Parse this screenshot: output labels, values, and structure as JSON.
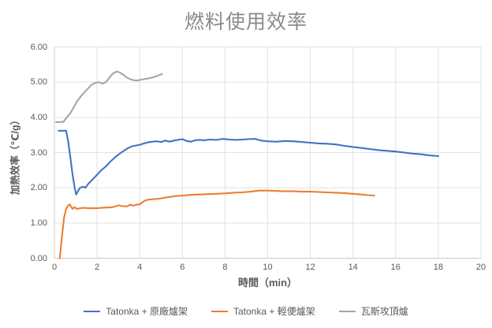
{
  "chart": {
    "title": "燃料使用效率",
    "colors": {
      "grid": "#e2e2e2",
      "axis": "#c9c9c9",
      "tick_text": "#595959",
      "title_text": "#8a8a8a",
      "series_blue": "#4472C4",
      "series_orange": "#ED7D31",
      "series_gray": "#A5A5A5"
    }
  },
  "chart_data": {
    "type": "line",
    "title": "燃料使用效率",
    "xlabel": "時間（min）",
    "ylabel": "加熱效率（℃/g）",
    "xlim": [
      0,
      20
    ],
    "ylim": [
      0,
      6
    ],
    "x_ticks": [
      "0",
      "2",
      "4",
      "6",
      "8",
      "10",
      "12",
      "14",
      "16",
      "18",
      "20"
    ],
    "y_ticks": [
      "0.00",
      "1.00",
      "2.00",
      "3.00",
      "4.00",
      "5.00",
      "6.00"
    ],
    "grid": true,
    "legend_position": "bottom",
    "series": [
      {
        "name": "Tatonka + 原廠爐架",
        "color": "#4472C4",
        "points": [
          [
            0.2,
            3.62
          ],
          [
            0.55,
            3.62
          ],
          [
            0.65,
            3.3
          ],
          [
            0.75,
            2.85
          ],
          [
            0.85,
            2.38
          ],
          [
            0.95,
            2.0
          ],
          [
            1.02,
            1.81
          ],
          [
            1.1,
            1.9
          ],
          [
            1.2,
            2.0
          ],
          [
            1.35,
            2.03
          ],
          [
            1.45,
            2.0
          ],
          [
            1.6,
            2.12
          ],
          [
            1.8,
            2.24
          ],
          [
            2.0,
            2.37
          ],
          [
            2.2,
            2.5
          ],
          [
            2.4,
            2.6
          ],
          [
            2.6,
            2.73
          ],
          [
            2.8,
            2.84
          ],
          [
            3.0,
            2.94
          ],
          [
            3.2,
            3.03
          ],
          [
            3.4,
            3.11
          ],
          [
            3.6,
            3.17
          ],
          [
            3.8,
            3.2
          ],
          [
            4.0,
            3.22
          ],
          [
            4.2,
            3.26
          ],
          [
            4.4,
            3.29
          ],
          [
            4.6,
            3.31
          ],
          [
            4.8,
            3.32
          ],
          [
            5.0,
            3.3
          ],
          [
            5.2,
            3.34
          ],
          [
            5.4,
            3.31
          ],
          [
            5.6,
            3.34
          ],
          [
            5.8,
            3.36
          ],
          [
            6.0,
            3.38
          ],
          [
            6.2,
            3.33
          ],
          [
            6.4,
            3.31
          ],
          [
            6.6,
            3.35
          ],
          [
            6.8,
            3.36
          ],
          [
            7.0,
            3.35
          ],
          [
            7.3,
            3.37
          ],
          [
            7.6,
            3.36
          ],
          [
            7.9,
            3.39
          ],
          [
            8.2,
            3.37
          ],
          [
            8.5,
            3.36
          ],
          [
            8.8,
            3.37
          ],
          [
            9.1,
            3.38
          ],
          [
            9.4,
            3.39
          ],
          [
            9.7,
            3.34
          ],
          [
            10.0,
            3.32
          ],
          [
            10.4,
            3.31
          ],
          [
            10.8,
            3.33
          ],
          [
            11.2,
            3.32
          ],
          [
            11.6,
            3.3
          ],
          [
            12.0,
            3.28
          ],
          [
            12.4,
            3.26
          ],
          [
            12.8,
            3.25
          ],
          [
            13.2,
            3.23
          ],
          [
            13.6,
            3.19
          ],
          [
            14.0,
            3.16
          ],
          [
            14.4,
            3.13
          ],
          [
            14.8,
            3.1
          ],
          [
            15.2,
            3.07
          ],
          [
            15.6,
            3.05
          ],
          [
            16.0,
            3.03
          ],
          [
            16.4,
            3.0
          ],
          [
            16.8,
            2.97
          ],
          [
            17.2,
            2.95
          ],
          [
            17.6,
            2.92
          ],
          [
            18.0,
            2.9
          ]
        ]
      },
      {
        "name": "Tatonka + 輕便爐架",
        "color": "#ED7D31",
        "points": [
          [
            0.25,
            0.0
          ],
          [
            0.35,
            0.6
          ],
          [
            0.45,
            1.15
          ],
          [
            0.55,
            1.4
          ],
          [
            0.65,
            1.5
          ],
          [
            0.72,
            1.53
          ],
          [
            0.85,
            1.4
          ],
          [
            0.95,
            1.45
          ],
          [
            1.05,
            1.4
          ],
          [
            1.2,
            1.42
          ],
          [
            1.4,
            1.43
          ],
          [
            1.6,
            1.42
          ],
          [
            1.8,
            1.42
          ],
          [
            2.0,
            1.42
          ],
          [
            2.2,
            1.43
          ],
          [
            2.4,
            1.44
          ],
          [
            2.6,
            1.44
          ],
          [
            2.8,
            1.46
          ],
          [
            3.0,
            1.5
          ],
          [
            3.2,
            1.48
          ],
          [
            3.4,
            1.47
          ],
          [
            3.55,
            1.52
          ],
          [
            3.7,
            1.49
          ],
          [
            3.85,
            1.52
          ],
          [
            4.0,
            1.53
          ],
          [
            4.15,
            1.6
          ],
          [
            4.3,
            1.65
          ],
          [
            4.5,
            1.67
          ],
          [
            4.7,
            1.68
          ],
          [
            4.9,
            1.69
          ],
          [
            5.1,
            1.71
          ],
          [
            5.3,
            1.73
          ],
          [
            5.6,
            1.76
          ],
          [
            6.0,
            1.78
          ],
          [
            6.4,
            1.8
          ],
          [
            6.8,
            1.81
          ],
          [
            7.2,
            1.82
          ],
          [
            7.6,
            1.83
          ],
          [
            8.0,
            1.84
          ],
          [
            8.4,
            1.86
          ],
          [
            8.8,
            1.87
          ],
          [
            9.2,
            1.89
          ],
          [
            9.6,
            1.92
          ],
          [
            10.0,
            1.92
          ],
          [
            10.4,
            1.91
          ],
          [
            10.8,
            1.9
          ],
          [
            11.2,
            1.9
          ],
          [
            11.6,
            1.89
          ],
          [
            12.0,
            1.89
          ],
          [
            12.4,
            1.88
          ],
          [
            12.8,
            1.87
          ],
          [
            13.2,
            1.86
          ],
          [
            13.6,
            1.85
          ],
          [
            14.0,
            1.83
          ],
          [
            14.4,
            1.81
          ],
          [
            14.7,
            1.79
          ],
          [
            15.0,
            1.78
          ]
        ]
      },
      {
        "name": "瓦斯攻頂爐",
        "color": "#A5A5A5",
        "points": [
          [
            0.08,
            3.86
          ],
          [
            0.42,
            3.87
          ],
          [
            0.58,
            4.0
          ],
          [
            0.75,
            4.12
          ],
          [
            0.92,
            4.3
          ],
          [
            1.08,
            4.47
          ],
          [
            1.25,
            4.6
          ],
          [
            1.42,
            4.72
          ],
          [
            1.58,
            4.82
          ],
          [
            1.75,
            4.93
          ],
          [
            1.92,
            4.98
          ],
          [
            2.08,
            5.0
          ],
          [
            2.25,
            4.96
          ],
          [
            2.42,
            5.0
          ],
          [
            2.58,
            5.13
          ],
          [
            2.75,
            5.25
          ],
          [
            2.92,
            5.3
          ],
          [
            3.08,
            5.27
          ],
          [
            3.25,
            5.2
          ],
          [
            3.42,
            5.12
          ],
          [
            3.58,
            5.08
          ],
          [
            3.75,
            5.05
          ],
          [
            3.92,
            5.05
          ],
          [
            4.08,
            5.07
          ],
          [
            4.25,
            5.09
          ],
          [
            4.42,
            5.11
          ],
          [
            4.58,
            5.13
          ],
          [
            4.75,
            5.16
          ],
          [
            4.92,
            5.2
          ],
          [
            5.05,
            5.23
          ]
        ]
      }
    ]
  }
}
